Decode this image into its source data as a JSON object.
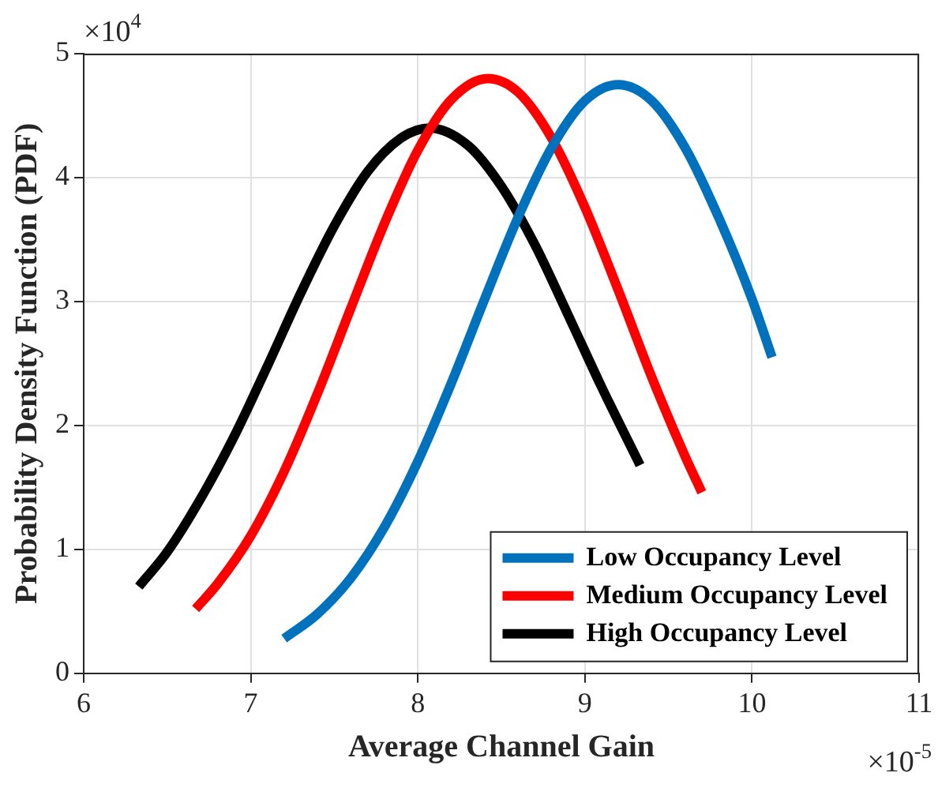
{
  "chart_data": {
    "type": "line",
    "xlabel": "Average Channel Gain",
    "ylabel": "Probability Density Function (PDF)",
    "annotations": [
      "×10$^{4}$",
      "×10$^{-5}$"
    ],
    "series": [
      {
        "name": "Low Occupancy Level",
        "color": "#0072bd",
        "x": [
          7.2,
          7.4,
          7.6,
          7.8,
          8.0,
          8.2,
          8.4,
          8.6,
          8.8,
          9.0,
          9.2,
          9.4,
          9.6,
          9.8,
          10.0,
          10.12
        ],
        "values": [
          0.28,
          0.48,
          0.77,
          1.18,
          1.71,
          2.34,
          3.02,
          3.68,
          4.24,
          4.62,
          4.75,
          4.62,
          4.24,
          3.68,
          3.02,
          2.55
        ]
      },
      {
        "name": "Medium Occupancy Level",
        "color": "#ff0000",
        "x": [
          6.67,
          6.8,
          7.0,
          7.2,
          7.4,
          7.6,
          7.8,
          8.0,
          8.2,
          8.42,
          8.6,
          8.8,
          9.0,
          9.2,
          9.4,
          9.6,
          9.7
        ],
        "values": [
          0.52,
          0.72,
          1.11,
          1.63,
          2.26,
          2.95,
          3.63,
          4.22,
          4.63,
          4.8,
          4.69,
          4.32,
          3.76,
          3.09,
          2.39,
          1.75,
          1.46
        ]
      },
      {
        "name": "High Occupancy Level",
        "color": "#000000",
        "x": [
          6.33,
          6.5,
          6.7,
          6.9,
          7.1,
          7.3,
          7.5,
          7.7,
          7.9,
          8.07,
          8.3,
          8.5,
          8.7,
          8.9,
          9.1,
          9.33
        ],
        "values": [
          0.7,
          0.98,
          1.41,
          1.91,
          2.48,
          3.07,
          3.61,
          4.05,
          4.32,
          4.4,
          4.26,
          3.93,
          3.46,
          2.89,
          2.31,
          1.68
        ]
      }
    ],
    "xlim": [
      6,
      11
    ],
    "xticks": [
      6,
      7,
      8,
      9,
      10,
      11
    ],
    "ylim": [
      0,
      5
    ],
    "yticks": [
      0,
      1,
      2,
      3,
      4,
      5
    ],
    "grid": true,
    "legend": "bottom right",
    "marker": "none",
    "line_style": "solid"
  }
}
